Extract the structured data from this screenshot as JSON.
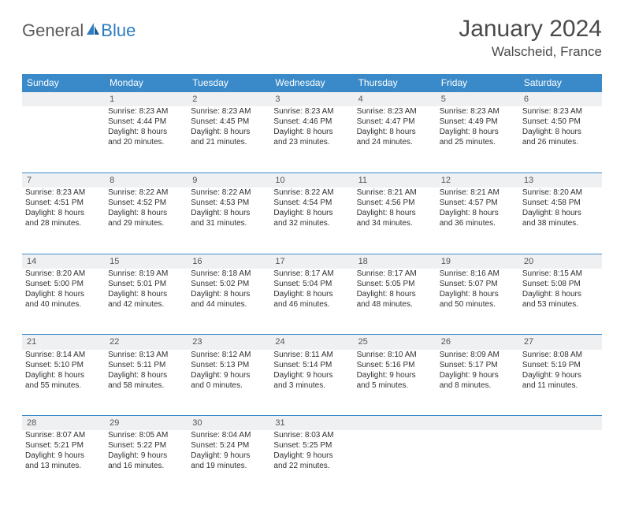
{
  "logo": {
    "part1": "General",
    "part2": "Blue"
  },
  "title": "January 2024",
  "location": "Walscheid, France",
  "colors": {
    "header_bg": "#3a8ac9",
    "daynum_bg": "#eef0f1",
    "rule": "#3a8ac9",
    "logo_gray": "#5a5a5a",
    "logo_blue": "#2e7cc1",
    "text": "#303030"
  },
  "dayHeaders": [
    "Sunday",
    "Monday",
    "Tuesday",
    "Wednesday",
    "Thursday",
    "Friday",
    "Saturday"
  ],
  "weeks": [
    {
      "nums": [
        "",
        "1",
        "2",
        "3",
        "4",
        "5",
        "6"
      ],
      "cells": [
        null,
        {
          "sr": "Sunrise: 8:23 AM",
          "ss": "Sunset: 4:44 PM",
          "d1": "Daylight: 8 hours",
          "d2": "and 20 minutes."
        },
        {
          "sr": "Sunrise: 8:23 AM",
          "ss": "Sunset: 4:45 PM",
          "d1": "Daylight: 8 hours",
          "d2": "and 21 minutes."
        },
        {
          "sr": "Sunrise: 8:23 AM",
          "ss": "Sunset: 4:46 PM",
          "d1": "Daylight: 8 hours",
          "d2": "and 23 minutes."
        },
        {
          "sr": "Sunrise: 8:23 AM",
          "ss": "Sunset: 4:47 PM",
          "d1": "Daylight: 8 hours",
          "d2": "and 24 minutes."
        },
        {
          "sr": "Sunrise: 8:23 AM",
          "ss": "Sunset: 4:49 PM",
          "d1": "Daylight: 8 hours",
          "d2": "and 25 minutes."
        },
        {
          "sr": "Sunrise: 8:23 AM",
          "ss": "Sunset: 4:50 PM",
          "d1": "Daylight: 8 hours",
          "d2": "and 26 minutes."
        }
      ]
    },
    {
      "nums": [
        "7",
        "8",
        "9",
        "10",
        "11",
        "12",
        "13"
      ],
      "cells": [
        {
          "sr": "Sunrise: 8:23 AM",
          "ss": "Sunset: 4:51 PM",
          "d1": "Daylight: 8 hours",
          "d2": "and 28 minutes."
        },
        {
          "sr": "Sunrise: 8:22 AM",
          "ss": "Sunset: 4:52 PM",
          "d1": "Daylight: 8 hours",
          "d2": "and 29 minutes."
        },
        {
          "sr": "Sunrise: 8:22 AM",
          "ss": "Sunset: 4:53 PM",
          "d1": "Daylight: 8 hours",
          "d2": "and 31 minutes."
        },
        {
          "sr": "Sunrise: 8:22 AM",
          "ss": "Sunset: 4:54 PM",
          "d1": "Daylight: 8 hours",
          "d2": "and 32 minutes."
        },
        {
          "sr": "Sunrise: 8:21 AM",
          "ss": "Sunset: 4:56 PM",
          "d1": "Daylight: 8 hours",
          "d2": "and 34 minutes."
        },
        {
          "sr": "Sunrise: 8:21 AM",
          "ss": "Sunset: 4:57 PM",
          "d1": "Daylight: 8 hours",
          "d2": "and 36 minutes."
        },
        {
          "sr": "Sunrise: 8:20 AM",
          "ss": "Sunset: 4:58 PM",
          "d1": "Daylight: 8 hours",
          "d2": "and 38 minutes."
        }
      ]
    },
    {
      "nums": [
        "14",
        "15",
        "16",
        "17",
        "18",
        "19",
        "20"
      ],
      "cells": [
        {
          "sr": "Sunrise: 8:20 AM",
          "ss": "Sunset: 5:00 PM",
          "d1": "Daylight: 8 hours",
          "d2": "and 40 minutes."
        },
        {
          "sr": "Sunrise: 8:19 AM",
          "ss": "Sunset: 5:01 PM",
          "d1": "Daylight: 8 hours",
          "d2": "and 42 minutes."
        },
        {
          "sr": "Sunrise: 8:18 AM",
          "ss": "Sunset: 5:02 PM",
          "d1": "Daylight: 8 hours",
          "d2": "and 44 minutes."
        },
        {
          "sr": "Sunrise: 8:17 AM",
          "ss": "Sunset: 5:04 PM",
          "d1": "Daylight: 8 hours",
          "d2": "and 46 minutes."
        },
        {
          "sr": "Sunrise: 8:17 AM",
          "ss": "Sunset: 5:05 PM",
          "d1": "Daylight: 8 hours",
          "d2": "and 48 minutes."
        },
        {
          "sr": "Sunrise: 8:16 AM",
          "ss": "Sunset: 5:07 PM",
          "d1": "Daylight: 8 hours",
          "d2": "and 50 minutes."
        },
        {
          "sr": "Sunrise: 8:15 AM",
          "ss": "Sunset: 5:08 PM",
          "d1": "Daylight: 8 hours",
          "d2": "and 53 minutes."
        }
      ]
    },
    {
      "nums": [
        "21",
        "22",
        "23",
        "24",
        "25",
        "26",
        "27"
      ],
      "cells": [
        {
          "sr": "Sunrise: 8:14 AM",
          "ss": "Sunset: 5:10 PM",
          "d1": "Daylight: 8 hours",
          "d2": "and 55 minutes."
        },
        {
          "sr": "Sunrise: 8:13 AM",
          "ss": "Sunset: 5:11 PM",
          "d1": "Daylight: 8 hours",
          "d2": "and 58 minutes."
        },
        {
          "sr": "Sunrise: 8:12 AM",
          "ss": "Sunset: 5:13 PM",
          "d1": "Daylight: 9 hours",
          "d2": "and 0 minutes."
        },
        {
          "sr": "Sunrise: 8:11 AM",
          "ss": "Sunset: 5:14 PM",
          "d1": "Daylight: 9 hours",
          "d2": "and 3 minutes."
        },
        {
          "sr": "Sunrise: 8:10 AM",
          "ss": "Sunset: 5:16 PM",
          "d1": "Daylight: 9 hours",
          "d2": "and 5 minutes."
        },
        {
          "sr": "Sunrise: 8:09 AM",
          "ss": "Sunset: 5:17 PM",
          "d1": "Daylight: 9 hours",
          "d2": "and 8 minutes."
        },
        {
          "sr": "Sunrise: 8:08 AM",
          "ss": "Sunset: 5:19 PM",
          "d1": "Daylight: 9 hours",
          "d2": "and 11 minutes."
        }
      ]
    },
    {
      "nums": [
        "28",
        "29",
        "30",
        "31",
        "",
        "",
        ""
      ],
      "cells": [
        {
          "sr": "Sunrise: 8:07 AM",
          "ss": "Sunset: 5:21 PM",
          "d1": "Daylight: 9 hours",
          "d2": "and 13 minutes."
        },
        {
          "sr": "Sunrise: 8:05 AM",
          "ss": "Sunset: 5:22 PM",
          "d1": "Daylight: 9 hours",
          "d2": "and 16 minutes."
        },
        {
          "sr": "Sunrise: 8:04 AM",
          "ss": "Sunset: 5:24 PM",
          "d1": "Daylight: 9 hours",
          "d2": "and 19 minutes."
        },
        {
          "sr": "Sunrise: 8:03 AM",
          "ss": "Sunset: 5:25 PM",
          "d1": "Daylight: 9 hours",
          "d2": "and 22 minutes."
        },
        null,
        null,
        null
      ]
    }
  ]
}
